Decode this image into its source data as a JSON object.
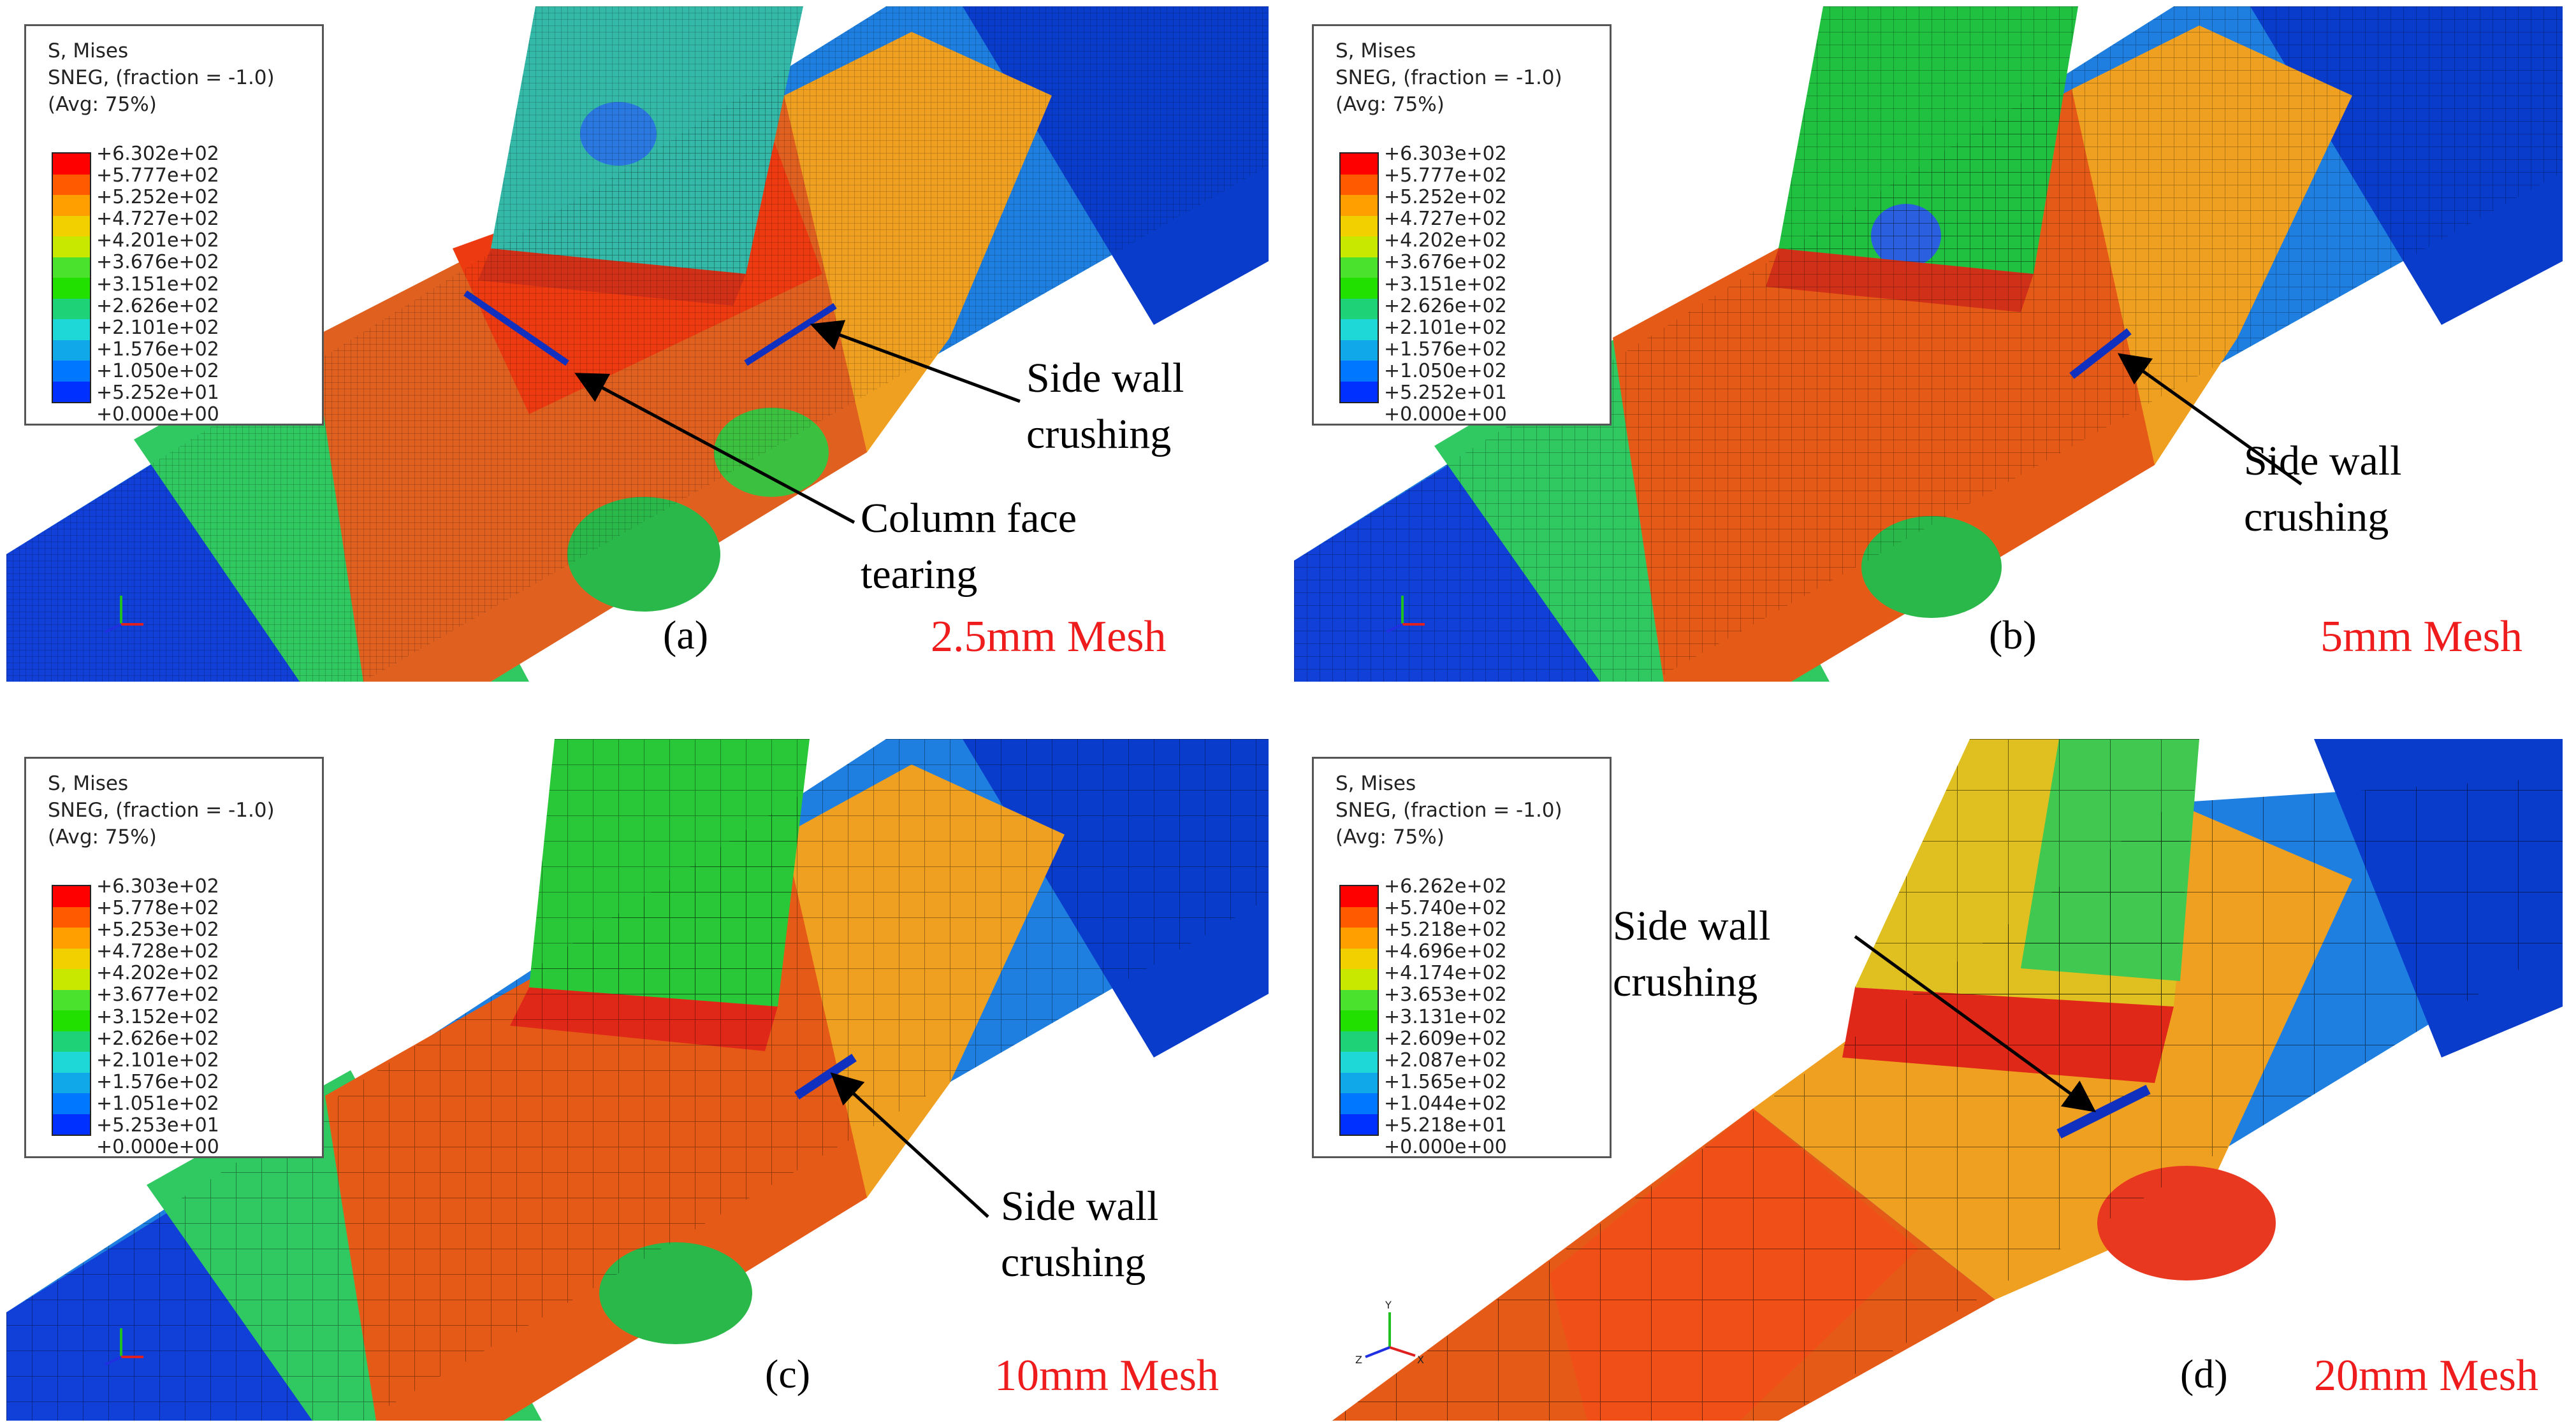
{
  "legend_colors": [
    "#ff0000",
    "#ff5a00",
    "#ffa000",
    "#f2d000",
    "#c8e800",
    "#4be22d",
    "#21e000",
    "#1ed277",
    "#1ed8d8",
    "#10a8e8",
    "#0077ff",
    "#0030ff",
    "#0000e0"
  ],
  "panels": [
    {
      "id": "a",
      "tag": "(a)",
      "mesh_label": "2.5mm Mesh",
      "legend": {
        "line1": "S, Mises",
        "line2": "SNEG, (fraction = -1.0)",
        "line3": "(Avg: 75%)",
        "values": [
          "+6.302e+02",
          "+5.777e+02",
          "+5.252e+02",
          "+4.727e+02",
          "+4.201e+02",
          "+3.676e+02",
          "+3.151e+02",
          "+2.626e+02",
          "+2.101e+02",
          "+1.576e+02",
          "+1.050e+02",
          "+5.252e+01",
          "+0.000e+00"
        ]
      },
      "notes": [
        {
          "line1": "Side wall",
          "line2": "crushing"
        },
        {
          "line1": "Column face",
          "line2": "tearing"
        }
      ]
    },
    {
      "id": "b",
      "tag": "(b)",
      "mesh_label": "5mm Mesh",
      "legend": {
        "line1": "S, Mises",
        "line2": "SNEG, (fraction = -1.0)",
        "line3": "(Avg: 75%)",
        "values": [
          "+6.303e+02",
          "+5.777e+02",
          "+5.252e+02",
          "+4.727e+02",
          "+4.202e+02",
          "+3.676e+02",
          "+3.151e+02",
          "+2.626e+02",
          "+2.101e+02",
          "+1.576e+02",
          "+1.050e+02",
          "+5.252e+01",
          "+0.000e+00"
        ]
      },
      "notes": [
        {
          "line1": "Side wall",
          "line2": "crushing"
        }
      ]
    },
    {
      "id": "c",
      "tag": "(c)",
      "mesh_label": "10mm Mesh",
      "legend": {
        "line1": "S, Mises",
        "line2": "SNEG, (fraction = -1.0)",
        "line3": "(Avg: 75%)",
        "values": [
          "+6.303e+02",
          "+5.778e+02",
          "+5.253e+02",
          "+4.728e+02",
          "+4.202e+02",
          "+3.677e+02",
          "+3.152e+02",
          "+2.626e+02",
          "+2.101e+02",
          "+1.576e+02",
          "+1.051e+02",
          "+5.253e+01",
          "+0.000e+00"
        ]
      },
      "notes": [
        {
          "line1": "Side wall",
          "line2": "crushing"
        }
      ]
    },
    {
      "id": "d",
      "tag": "(d)",
      "mesh_label": "20mm Mesh",
      "legend": {
        "line1": "S, Mises",
        "line2": "SNEG, (fraction = -1.0)",
        "line3": "(Avg: 75%)",
        "values": [
          "+6.262e+02",
          "+5.740e+02",
          "+5.218e+02",
          "+4.696e+02",
          "+4.174e+02",
          "+3.653e+02",
          "+3.131e+02",
          "+2.609e+02",
          "+2.087e+02",
          "+1.565e+02",
          "+1.044e+02",
          "+5.218e+01",
          "+0.000e+00"
        ]
      },
      "notes": [
        {
          "line1": "Side wall",
          "line2": "crushing"
        }
      ]
    }
  ]
}
